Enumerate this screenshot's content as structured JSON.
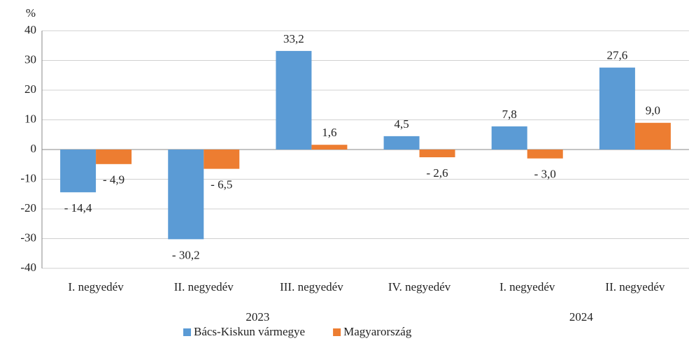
{
  "chart_data": {
    "type": "bar",
    "y_unit": "%",
    "categories": [
      "I. negyedév",
      "II. negyedév",
      "III. negyedév",
      "IV. negyedév",
      "I. negyedév",
      "II. negyedév"
    ],
    "groups": [
      {
        "label": "2023",
        "count": 4
      },
      {
        "label": "2024",
        "count": 2
      }
    ],
    "series": [
      {
        "name": "Bács-Kiskun vármegye",
        "color": "#5b9bd5",
        "values": [
          -14.4,
          -30.2,
          33.2,
          4.5,
          7.8,
          27.6
        ],
        "value_labels": [
          "- 14,4",
          "- 30,2",
          "33,2",
          "4,5",
          "7,8",
          "27,6"
        ]
      },
      {
        "name": "Magyarország",
        "color": "#ed7d31",
        "values": [
          -4.9,
          -6.5,
          1.6,
          -2.6,
          -3.0,
          9.0
        ],
        "value_labels": [
          "- 4,9",
          "- 6,5",
          "1,6",
          "- 2,6",
          "- 3,0",
          "9,0"
        ]
      }
    ],
    "ylim": [
      -40,
      40
    ],
    "yticks": [
      -40,
      -30,
      -20,
      -10,
      0,
      10,
      20,
      30,
      40
    ],
    "grid": true,
    "legend": "bottom"
  }
}
